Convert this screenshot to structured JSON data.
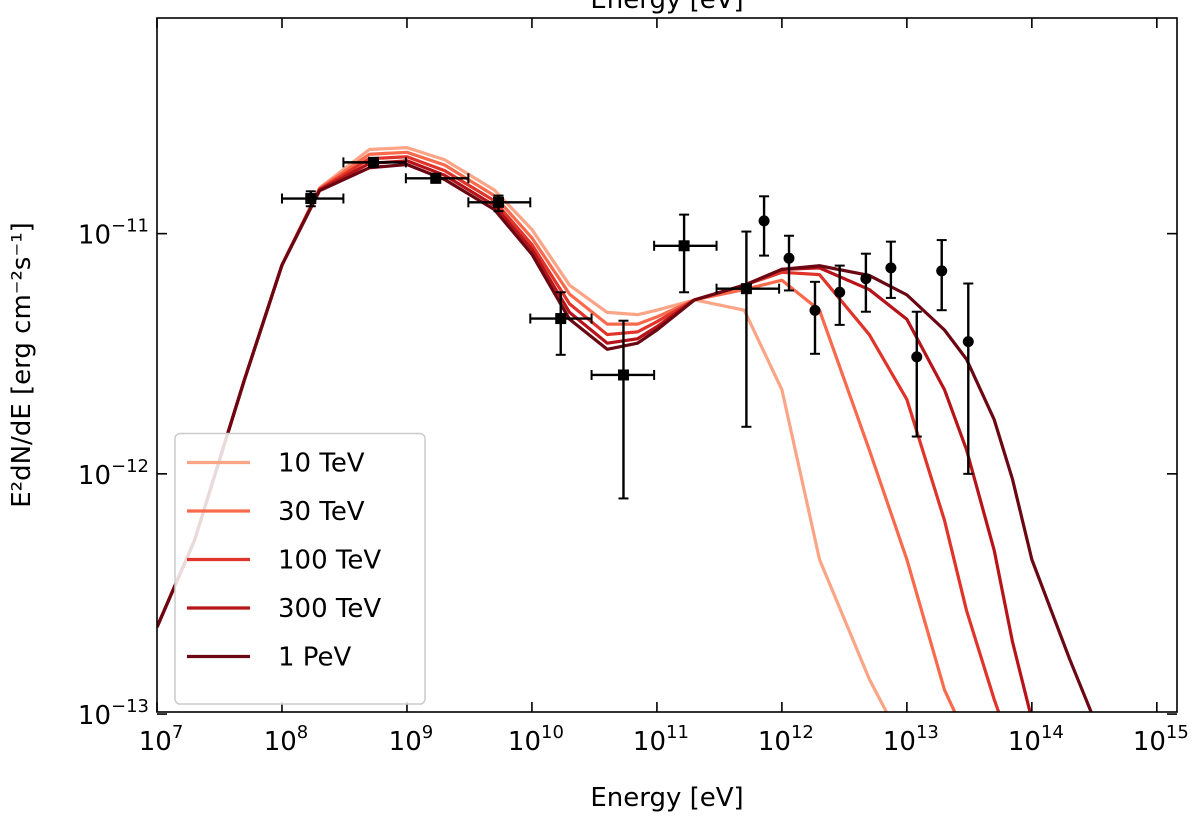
{
  "chart_data": {
    "type": "line",
    "xlabel": "Energy [eV]",
    "x2label": "Energy [eV]",
    "ylabel": "E²dN/dE [erg cm⁻²s⁻¹]",
    "xscale": "log",
    "yscale": "log",
    "xlim": [
      10000000.0,
      1450000000000000.0
    ],
    "ylim": [
      1.02e-13,
      7.9e-11
    ],
    "xticks": [
      {
        "value": 10000000.0,
        "label": "10",
        "exponent": "7"
      },
      {
        "value": 100000000.0,
        "label": "10",
        "exponent": "8"
      },
      {
        "value": 1000000000.0,
        "label": "10",
        "exponent": "9"
      },
      {
        "value": 10000000000.0,
        "label": "10",
        "exponent": "10"
      },
      {
        "value": 100000000000.0,
        "label": "10",
        "exponent": "11"
      },
      {
        "value": 1000000000000.0,
        "label": "10",
        "exponent": "12"
      },
      {
        "value": 10000000000000.0,
        "label": "10",
        "exponent": "13"
      },
      {
        "value": 100000000000000.0,
        "label": "10",
        "exponent": "14"
      },
      {
        "value": 1000000000000000.0,
        "label": "10",
        "exponent": "15"
      }
    ],
    "yticks": [
      {
        "value": 1e-13,
        "label": "10",
        "exponent": "−13"
      },
      {
        "value": 1e-12,
        "label": "10",
        "exponent": "−12"
      },
      {
        "value": 1e-11,
        "label": "10",
        "exponent": "−11"
      }
    ],
    "legend": "lower left",
    "x": [
      10000000.0,
      20000000.0,
      50000000.0,
      100000000.0,
      200000000.0,
      500000000.0,
      1000000000.0,
      2000000000.0,
      5000000000.0,
      10000000000.0,
      20000000000.0,
      40000000000.0,
      70000000000.0,
      100000000000.0,
      200000000000.0,
      500000000000.0,
      1000000000000.0,
      2000000000000.0,
      5000000000000.0,
      10000000000000.0,
      20000000000000.0,
      30000000000000.0,
      50000000000000.0,
      70000000000000.0,
      100000000000000.0,
      200000000000000.0,
      400000000000000.0
    ],
    "series": [
      {
        "name": "10 TeV",
        "color": "#fca486",
        "values": [
          2.3e-13,
          5.3e-13,
          2.46e-12,
          7.4e-12,
          1.55e-11,
          2.24e-11,
          2.28e-11,
          2.03e-11,
          1.52e-11,
          1.04e-11,
          6.1e-12,
          4.7e-12,
          4.6e-12,
          4.8e-12,
          5.3e-12,
          4.8e-12,
          2.24e-12,
          4.4e-13,
          1.4e-13,
          7e-14,
          null,
          null,
          null,
          null,
          null,
          null,
          null
        ]
      },
      {
        "name": "30 TeV",
        "color": "#f96a4d",
        "values": [
          2.3e-13,
          5.3e-13,
          2.46e-12,
          7.4e-12,
          1.54e-11,
          2.14e-11,
          2.18e-11,
          1.93e-11,
          1.44e-11,
          9.6e-12,
          5.6e-12,
          4.2e-12,
          4.2e-12,
          4.5e-12,
          5.3e-12,
          5.85e-12,
          6.4e-12,
          4.8e-12,
          1.26e-12,
          4.4e-13,
          1.26e-13,
          8e-14,
          null,
          null,
          null,
          null,
          null
        ]
      },
      {
        "name": "100 TeV",
        "color": "#e0342b",
        "values": [
          2.3e-13,
          5.3e-13,
          2.46e-12,
          7.4e-12,
          1.53e-11,
          2.05e-11,
          2.09e-11,
          1.83e-11,
          1.37e-11,
          9e-12,
          5.1e-12,
          3.8e-12,
          3.9e-12,
          4.3e-12,
          5.3e-12,
          6.1e-12,
          6.9e-12,
          6.75e-12,
          3.8e-12,
          2.04e-12,
          6.4e-13,
          2.7e-13,
          1.15e-13,
          7e-14,
          null,
          null,
          null
        ]
      },
      {
        "name": "300 TeV",
        "color": "#b71419",
        "values": [
          2.3e-13,
          5.3e-13,
          2.46e-12,
          7.4e-12,
          1.52e-11,
          1.96e-11,
          2.01e-11,
          1.75e-11,
          1.31e-11,
          8.6e-12,
          4.7e-12,
          3.5e-12,
          3.65e-12,
          4.1e-12,
          5.3e-12,
          6.1e-12,
          7.1e-12,
          7.2e-12,
          5.85e-12,
          4.4e-12,
          2.24e-12,
          1.26e-12,
          4.8e-13,
          2e-13,
          9.5e-14,
          null,
          null
        ]
      },
      {
        "name": "1 PeV",
        "color": "#6b0712",
        "values": [
          2.3e-13,
          5.3e-13,
          2.46e-12,
          7.4e-12,
          1.51e-11,
          1.88e-11,
          1.94e-11,
          1.68e-11,
          1.26e-11,
          8.2e-12,
          4.4e-12,
          3.3e-12,
          3.5e-12,
          3.97e-12,
          5.3e-12,
          6.1e-12,
          7.1e-12,
          7.35e-12,
          6.7e-12,
          5.56e-12,
          3.97e-12,
          3e-12,
          1.68e-12,
          9.5e-13,
          4.4e-13,
          1.7e-13,
          7e-14
        ]
      }
    ],
    "data_points": [
      {
        "marker": "square",
        "color": "#000000",
        "x": [
          170000000.0,
          540000000.0,
          1700000000.0,
          5400000000.0,
          17000000000.0,
          54000000000.0,
          165000000000.0,
          520000000000.0
        ],
        "xlo": [
          100000000.0,
          310000000.0,
          980000000.0,
          3100000000.0,
          9700000000.0,
          30000000000.0,
          95000000000.0,
          300000000000.0
        ],
        "xhi": [
          310000000.0,
          980000000.0,
          3100000000.0,
          9700000000.0,
          30000000000.0,
          95000000000.0,
          300000000000.0,
          950000000000.0
        ],
        "y": [
          1.4e-11,
          1.98e-11,
          1.7e-11,
          1.35e-11,
          4.43e-12,
          2.58e-12,
          8.9e-12,
          5.9e-12
        ],
        "ylo": [
          1.3e-11,
          1.9e-11,
          1.63e-11,
          1.24e-11,
          3.13e-12,
          7.9e-13,
          5.7e-12,
          1.57e-12
        ],
        "yhi": [
          1.5e-11,
          2.05e-11,
          1.77e-11,
          1.44e-11,
          5.7e-12,
          4.34e-12,
          1.2e-11,
          1.02e-11
        ]
      },
      {
        "marker": "circle",
        "color": "#000000",
        "x": [
          720000000000.0,
          1140000000000.0,
          1840000000000.0,
          2900000000000.0,
          4700000000000.0,
          7450000000000.0,
          12000000000000.0,
          19000000000000.0,
          31000000000000.0
        ],
        "y": [
          1.13e-11,
          7.9e-12,
          4.79e-12,
          5.7e-12,
          6.5e-12,
          7.2e-12,
          3.07e-12,
          7e-12,
          3.55e-12
        ],
        "ylo": [
          8.1e-12,
          5.8e-12,
          3.16e-12,
          4.17e-12,
          4.73e-12,
          5.4e-12,
          1.43e-12,
          4.8e-12,
          1e-12
        ],
        "yhi": [
          1.43e-11,
          9.8e-12,
          6.3e-12,
          7.36e-12,
          8.25e-12,
          9.26e-12,
          4.73e-12,
          9.4e-12,
          6.2e-12
        ]
      }
    ]
  }
}
